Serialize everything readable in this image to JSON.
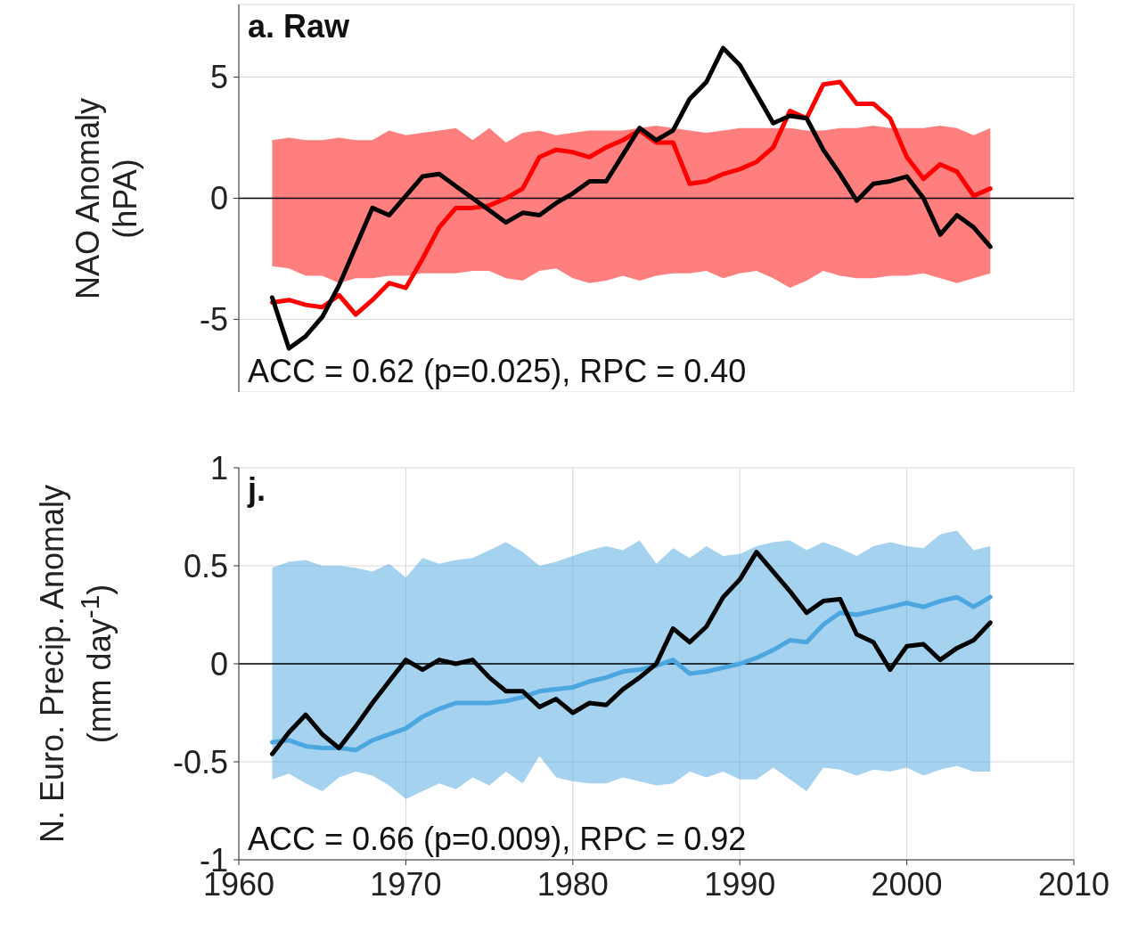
{
  "chart_data": [
    {
      "type": "line",
      "ylabel": "NAO Anomaly (hPA)",
      "annotations": [
        "a. Raw",
        "ACC = 0.62 (p=0.025), RPC = 0.40"
      ],
      "x": [
        1962,
        1963,
        1964,
        1965,
        1966,
        1967,
        1968,
        1969,
        1970,
        1971,
        1972,
        1973,
        1974,
        1975,
        1976,
        1977,
        1978,
        1979,
        1980,
        1981,
        1982,
        1983,
        1984,
        1985,
        1986,
        1987,
        1988,
        1989,
        1990,
        1991,
        1992,
        1993,
        1994,
        1995,
        1996,
        1997,
        1998,
        1999,
        2000,
        2001,
        2002,
        2003,
        2004,
        2005
      ],
      "series": [
        {
          "color": "#ff0000",
          "values": [
            -4.3,
            -4.2,
            -4.4,
            -4.5,
            -4.0,
            -4.8,
            -4.2,
            -3.5,
            -3.7,
            -2.5,
            -1.2,
            -0.4,
            -0.4,
            -0.3,
            0.0,
            0.4,
            1.7,
            2.0,
            1.9,
            1.7,
            2.1,
            2.4,
            2.8,
            2.3,
            2.3,
            0.6,
            0.7,
            1.0,
            1.2,
            1.5,
            2.1,
            3.6,
            3.3,
            4.7,
            4.8,
            3.9,
            3.9,
            3.3,
            1.7,
            0.8,
            1.4,
            1.1,
            0.1,
            0.4
          ],
          "lower": [
            -2.8,
            -2.9,
            -3.2,
            -3.2,
            -3.5,
            -3.3,
            -3.3,
            -3.2,
            -3.2,
            -3.1,
            -3.1,
            -3.1,
            -3.0,
            -3.0,
            -3.3,
            -3.4,
            -3.0,
            -2.9,
            -3.3,
            -3.5,
            -3.4,
            -3.2,
            -3.4,
            -3.2,
            -3.1,
            -3.1,
            -3.0,
            -3.3,
            -3.1,
            -3.0,
            -3.3,
            -3.7,
            -3.4,
            -3.0,
            -3.2,
            -3.3,
            -3.3,
            -3.2,
            -3.2,
            -3.1,
            -3.3,
            -3.5,
            -3.3,
            -3.1
          ],
          "upper": [
            2.4,
            2.5,
            2.4,
            2.4,
            2.5,
            2.4,
            2.4,
            2.8,
            2.6,
            2.7,
            2.8,
            2.9,
            2.4,
            2.9,
            2.3,
            2.7,
            2.8,
            2.6,
            2.7,
            2.8,
            2.8,
            2.8,
            2.9,
            3.0,
            2.9,
            2.8,
            2.7,
            2.8,
            2.9,
            2.9,
            2.9,
            2.9,
            2.8,
            2.8,
            2.9,
            2.9,
            3.0,
            2.9,
            2.9,
            2.9,
            3.0,
            2.9,
            2.6,
            2.9
          ]
        },
        {
          "color": "#000000",
          "values": [
            -4.1,
            -6.2,
            -5.7,
            -4.9,
            -3.6,
            -2.0,
            -0.4,
            -0.7,
            0.1,
            0.9,
            1.0,
            0.5,
            0.0,
            -0.5,
            -1.0,
            -0.6,
            -0.7,
            -0.2,
            0.2,
            0.7,
            0.7,
            1.8,
            2.9,
            2.4,
            2.8,
            4.1,
            4.8,
            6.2,
            5.5,
            4.3,
            3.1,
            3.4,
            3.3,
            2.0,
            1.0,
            -0.1,
            0.6,
            0.7,
            0.9,
            0.0,
            -1.5,
            -0.7,
            -1.2,
            -2.0
          ]
        }
      ],
      "xlim": [
        1960,
        2010
      ],
      "xticks": [
        1960,
        1970,
        1980,
        1990,
        2000,
        2010
      ],
      "ylim": [
        -8,
        8
      ],
      "yticks": [
        -5,
        0,
        5
      ],
      "ref_lines": [
        {
          "axis": "y",
          "value": 0
        }
      ],
      "grid": true,
      "tick_labels": "y",
      "legend": false,
      "marker": "none",
      "line_style": "solid"
    },
    {
      "type": "line",
      "ylabel": "N. Euro. Precip. Anomaly (mm day$^{-1}$)",
      "annotations": [
        "j.",
        "ACC = 0.66 (p=0.009), RPC = 0.92"
      ],
      "x": [
        1962,
        1963,
        1964,
        1965,
        1966,
        1967,
        1968,
        1969,
        1970,
        1971,
        1972,
        1973,
        1974,
        1975,
        1976,
        1977,
        1978,
        1979,
        1980,
        1981,
        1982,
        1983,
        1984,
        1985,
        1986,
        1987,
        1988,
        1989,
        1990,
        1991,
        1992,
        1993,
        1994,
        1995,
        1996,
        1997,
        1998,
        1999,
        2000,
        2001,
        2002,
        2003,
        2004,
        2005
      ],
      "series": [
        {
          "color": "#4ca6e0",
          "values": [
            -0.4,
            -0.39,
            -0.42,
            -0.43,
            -0.43,
            -0.44,
            -0.39,
            -0.36,
            -0.33,
            -0.27,
            -0.23,
            -0.2,
            -0.2,
            -0.2,
            -0.19,
            -0.17,
            -0.14,
            -0.13,
            -0.12,
            -0.09,
            -0.07,
            -0.04,
            -0.03,
            -0.01,
            0.02,
            -0.05,
            -0.04,
            -0.02,
            0.0,
            0.03,
            0.07,
            0.12,
            0.11,
            0.2,
            0.26,
            0.25,
            0.27,
            0.29,
            0.31,
            0.29,
            0.32,
            0.34,
            0.29,
            0.34
          ],
          "lower": [
            -0.59,
            -0.56,
            -0.61,
            -0.65,
            -0.58,
            -0.55,
            -0.57,
            -0.62,
            -0.69,
            -0.65,
            -0.61,
            -0.64,
            -0.58,
            -0.62,
            -0.55,
            -0.61,
            -0.47,
            -0.58,
            -0.6,
            -0.61,
            -0.61,
            -0.58,
            -0.6,
            -0.62,
            -0.61,
            -0.55,
            -0.58,
            -0.55,
            -0.59,
            -0.59,
            -0.53,
            -0.59,
            -0.65,
            -0.53,
            -0.54,
            -0.57,
            -0.54,
            -0.55,
            -0.53,
            -0.57,
            -0.54,
            -0.52,
            -0.55,
            -0.55
          ],
          "upper": [
            0.49,
            0.52,
            0.53,
            0.5,
            0.5,
            0.49,
            0.47,
            0.51,
            0.44,
            0.54,
            0.51,
            0.53,
            0.54,
            0.58,
            0.62,
            0.57,
            0.5,
            0.52,
            0.55,
            0.58,
            0.6,
            0.58,
            0.63,
            0.51,
            0.59,
            0.54,
            0.6,
            0.55,
            0.56,
            0.6,
            0.62,
            0.63,
            0.58,
            0.62,
            0.59,
            0.55,
            0.6,
            0.62,
            0.6,
            0.59,
            0.66,
            0.68,
            0.58,
            0.6
          ]
        },
        {
          "color": "#000000",
          "values": [
            -0.46,
            -0.35,
            -0.26,
            -0.36,
            -0.43,
            -0.32,
            -0.2,
            -0.09,
            0.02,
            -0.03,
            0.02,
            0.0,
            0.02,
            -0.07,
            -0.14,
            -0.14,
            -0.22,
            -0.18,
            -0.25,
            -0.2,
            -0.21,
            -0.13,
            -0.07,
            0.0,
            0.18,
            0.11,
            0.19,
            0.34,
            0.43,
            0.57,
            0.47,
            0.37,
            0.26,
            0.32,
            0.33,
            0.15,
            0.11,
            -0.03,
            0.09,
            0.1,
            0.02,
            0.08,
            0.12,
            0.21
          ]
        }
      ],
      "xlim": [
        1960,
        2010
      ],
      "xticks": [
        1960,
        1970,
        1980,
        1990,
        2000,
        2010
      ],
      "ylim": [
        -1,
        1
      ],
      "yticks": [
        -1,
        -0.5,
        0,
        0.5,
        1
      ],
      "ref_lines": [
        {
          "axis": "y",
          "value": 0
        }
      ],
      "grid": true,
      "legend": false,
      "marker": "none",
      "line_style": "solid"
    }
  ]
}
